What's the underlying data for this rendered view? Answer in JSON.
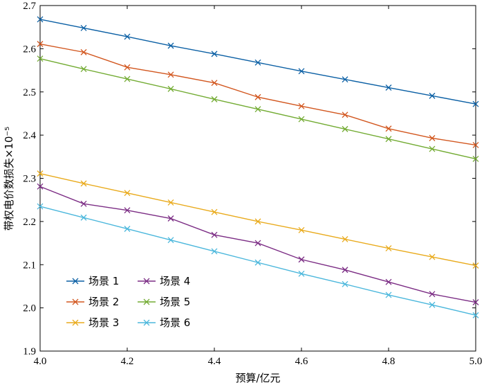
{
  "chart_data": {
    "type": "line",
    "xlabel": "预算/亿元",
    "ylabel": "带权电价数损失×10⁻⁵",
    "xlim": [
      4.0,
      5.0
    ],
    "ylim": [
      1.9,
      2.7
    ],
    "xticks": [
      "4.0",
      "4.2",
      "4.4",
      "4.6",
      "4.8",
      "5.0"
    ],
    "yticks": [
      "1.9",
      "2.0",
      "2.1",
      "2.2",
      "2.3",
      "2.4",
      "2.5",
      "2.6",
      "2.7"
    ],
    "x": [
      4.0,
      4.1,
      4.2,
      4.3,
      4.4,
      4.5,
      4.6,
      4.7,
      4.8,
      4.9,
      5.0
    ],
    "grid": false,
    "legend_position": "bottom-left",
    "series": [
      {
        "name": "场景 1",
        "color": "#0a5fa4",
        "values": [
          2.668,
          2.648,
          2.628,
          2.607,
          2.588,
          2.568,
          2.548,
          2.529,
          2.51,
          2.491,
          2.472
        ]
      },
      {
        "name": "场景 2",
        "color": "#d2561e",
        "values": [
          2.611,
          2.592,
          2.557,
          2.54,
          2.521,
          2.488,
          2.467,
          2.447,
          2.415,
          2.393,
          2.377
        ]
      },
      {
        "name": "场景 3",
        "color": "#e9aa1b",
        "values": [
          2.311,
          2.288,
          2.266,
          2.244,
          2.222,
          2.2,
          2.18,
          2.159,
          2.138,
          2.118,
          2.098
        ]
      },
      {
        "name": "场景 4",
        "color": "#7b2c84",
        "values": [
          2.281,
          2.241,
          2.226,
          2.207,
          2.169,
          2.15,
          2.112,
          2.088,
          2.06,
          2.032,
          2.013
        ]
      },
      {
        "name": "场景 5",
        "color": "#72ab32",
        "values": [
          2.577,
          2.553,
          2.53,
          2.507,
          2.483,
          2.46,
          2.437,
          2.414,
          2.391,
          2.368,
          2.345
        ]
      },
      {
        "name": "场景 6",
        "color": "#4bb7dc",
        "values": [
          2.235,
          2.209,
          2.183,
          2.157,
          2.131,
          2.105,
          2.079,
          2.055,
          2.03,
          2.007,
          1.983
        ]
      }
    ]
  }
}
